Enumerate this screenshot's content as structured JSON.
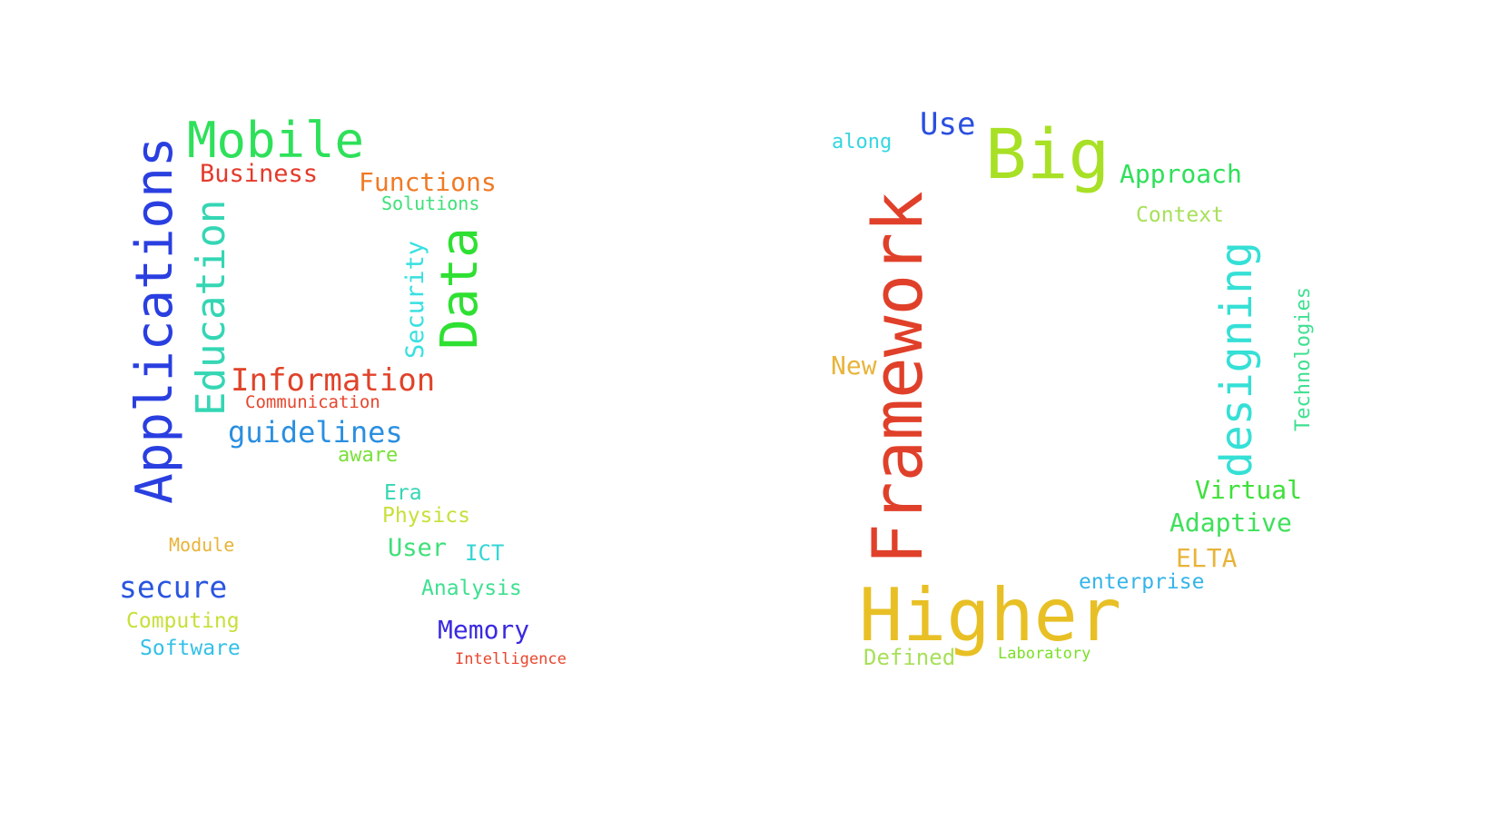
{
  "clouds": [
    {
      "id": "left",
      "words": [
        {
          "text": "Mobile",
          "color": "#2ee05a"
        },
        {
          "text": "Applications",
          "color": "#2a3fe0",
          "orientation": "vertical"
        },
        {
          "text": "Education",
          "color": "#35d6b4",
          "orientation": "vertical"
        },
        {
          "text": "Business",
          "color": "#e43a2a"
        },
        {
          "text": "Functions",
          "color": "#f07a25"
        },
        {
          "text": "Solutions",
          "color": "#3ee07a"
        },
        {
          "text": "Data",
          "color": "#2ee032",
          "orientation": "vertical"
        },
        {
          "text": "Security",
          "color": "#38e0e0",
          "orientation": "vertical"
        },
        {
          "text": "Information",
          "color": "#e0432a"
        },
        {
          "text": "Communication",
          "color": "#e8452d"
        },
        {
          "text": "guidelines",
          "color": "#2a8fe0"
        },
        {
          "text": "aware",
          "color": "#7ae03a"
        },
        {
          "text": "Era",
          "color": "#35d6b4"
        },
        {
          "text": "Physics",
          "color": "#c7e03a"
        },
        {
          "text": "Module",
          "color": "#e8b43a"
        },
        {
          "text": "User",
          "color": "#3ee07a"
        },
        {
          "text": "ICT",
          "color": "#35d6d6"
        },
        {
          "text": "secure",
          "color": "#2a55e0"
        },
        {
          "text": "Analysis",
          "color": "#3ee090"
        },
        {
          "text": "Computing",
          "color": "#c7e03a"
        },
        {
          "text": "Memory",
          "color": "#3a2ae0"
        },
        {
          "text": "Software",
          "color": "#35c0e8"
        },
        {
          "text": "Intelligence",
          "color": "#e8452d"
        }
      ]
    },
    {
      "id": "right",
      "words": [
        {
          "text": "Use",
          "color": "#2a4fe0"
        },
        {
          "text": "along",
          "color": "#35d6e0"
        },
        {
          "text": "Big",
          "color": "#a8e025"
        },
        {
          "text": "Approach",
          "color": "#2ee05a"
        },
        {
          "text": "Framework",
          "color": "#e0402a",
          "orientation": "vertical"
        },
        {
          "text": "Context",
          "color": "#a8e05a"
        },
        {
          "text": "designing",
          "color": "#35e0d6",
          "orientation": "vertical"
        },
        {
          "text": "Technologies",
          "color": "#3ee090",
          "orientation": "vertical"
        },
        {
          "text": "New",
          "color": "#e8b43a"
        },
        {
          "text": "Virtual",
          "color": "#3ee03a"
        },
        {
          "text": "Adaptive",
          "color": "#3ee05a"
        },
        {
          "text": "ELTA",
          "color": "#e8b43a"
        },
        {
          "text": "enterprise",
          "color": "#35b4e8"
        },
        {
          "text": "Higher",
          "color": "#e8c025"
        },
        {
          "text": "Defined",
          "color": "#a8e05a"
        },
        {
          "text": "Laboratory",
          "color": "#7ae025"
        }
      ]
    }
  ]
}
